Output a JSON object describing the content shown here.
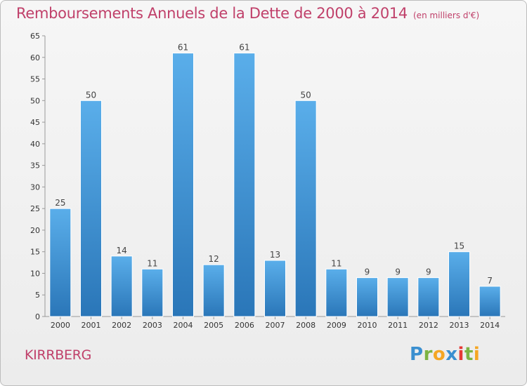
{
  "title": "Remboursements Annuels de la Dette de 2000 à 2014",
  "subtitle": "(en milliers d'€)",
  "commune": "KIRRBERG",
  "logo": "Proxiti",
  "chart_data": {
    "type": "bar",
    "title": "Remboursements Annuels de la Dette de 2000 à 2014",
    "subtitle": "(en milliers d'€)",
    "categories": [
      "2000",
      "2001",
      "2002",
      "2003",
      "2004",
      "2005",
      "2006",
      "2007",
      "2008",
      "2009",
      "2010",
      "2011",
      "2012",
      "2013",
      "2014"
    ],
    "values": [
      25,
      50,
      14,
      11,
      61,
      12,
      61,
      13,
      50,
      11,
      9,
      9,
      9,
      15,
      7
    ],
    "ylim": [
      0,
      65
    ],
    "yticks": [
      0,
      5,
      10,
      15,
      20,
      25,
      30,
      35,
      40,
      45,
      50,
      55,
      60,
      65
    ],
    "grid": false,
    "bar_color": "#3d91d6"
  }
}
